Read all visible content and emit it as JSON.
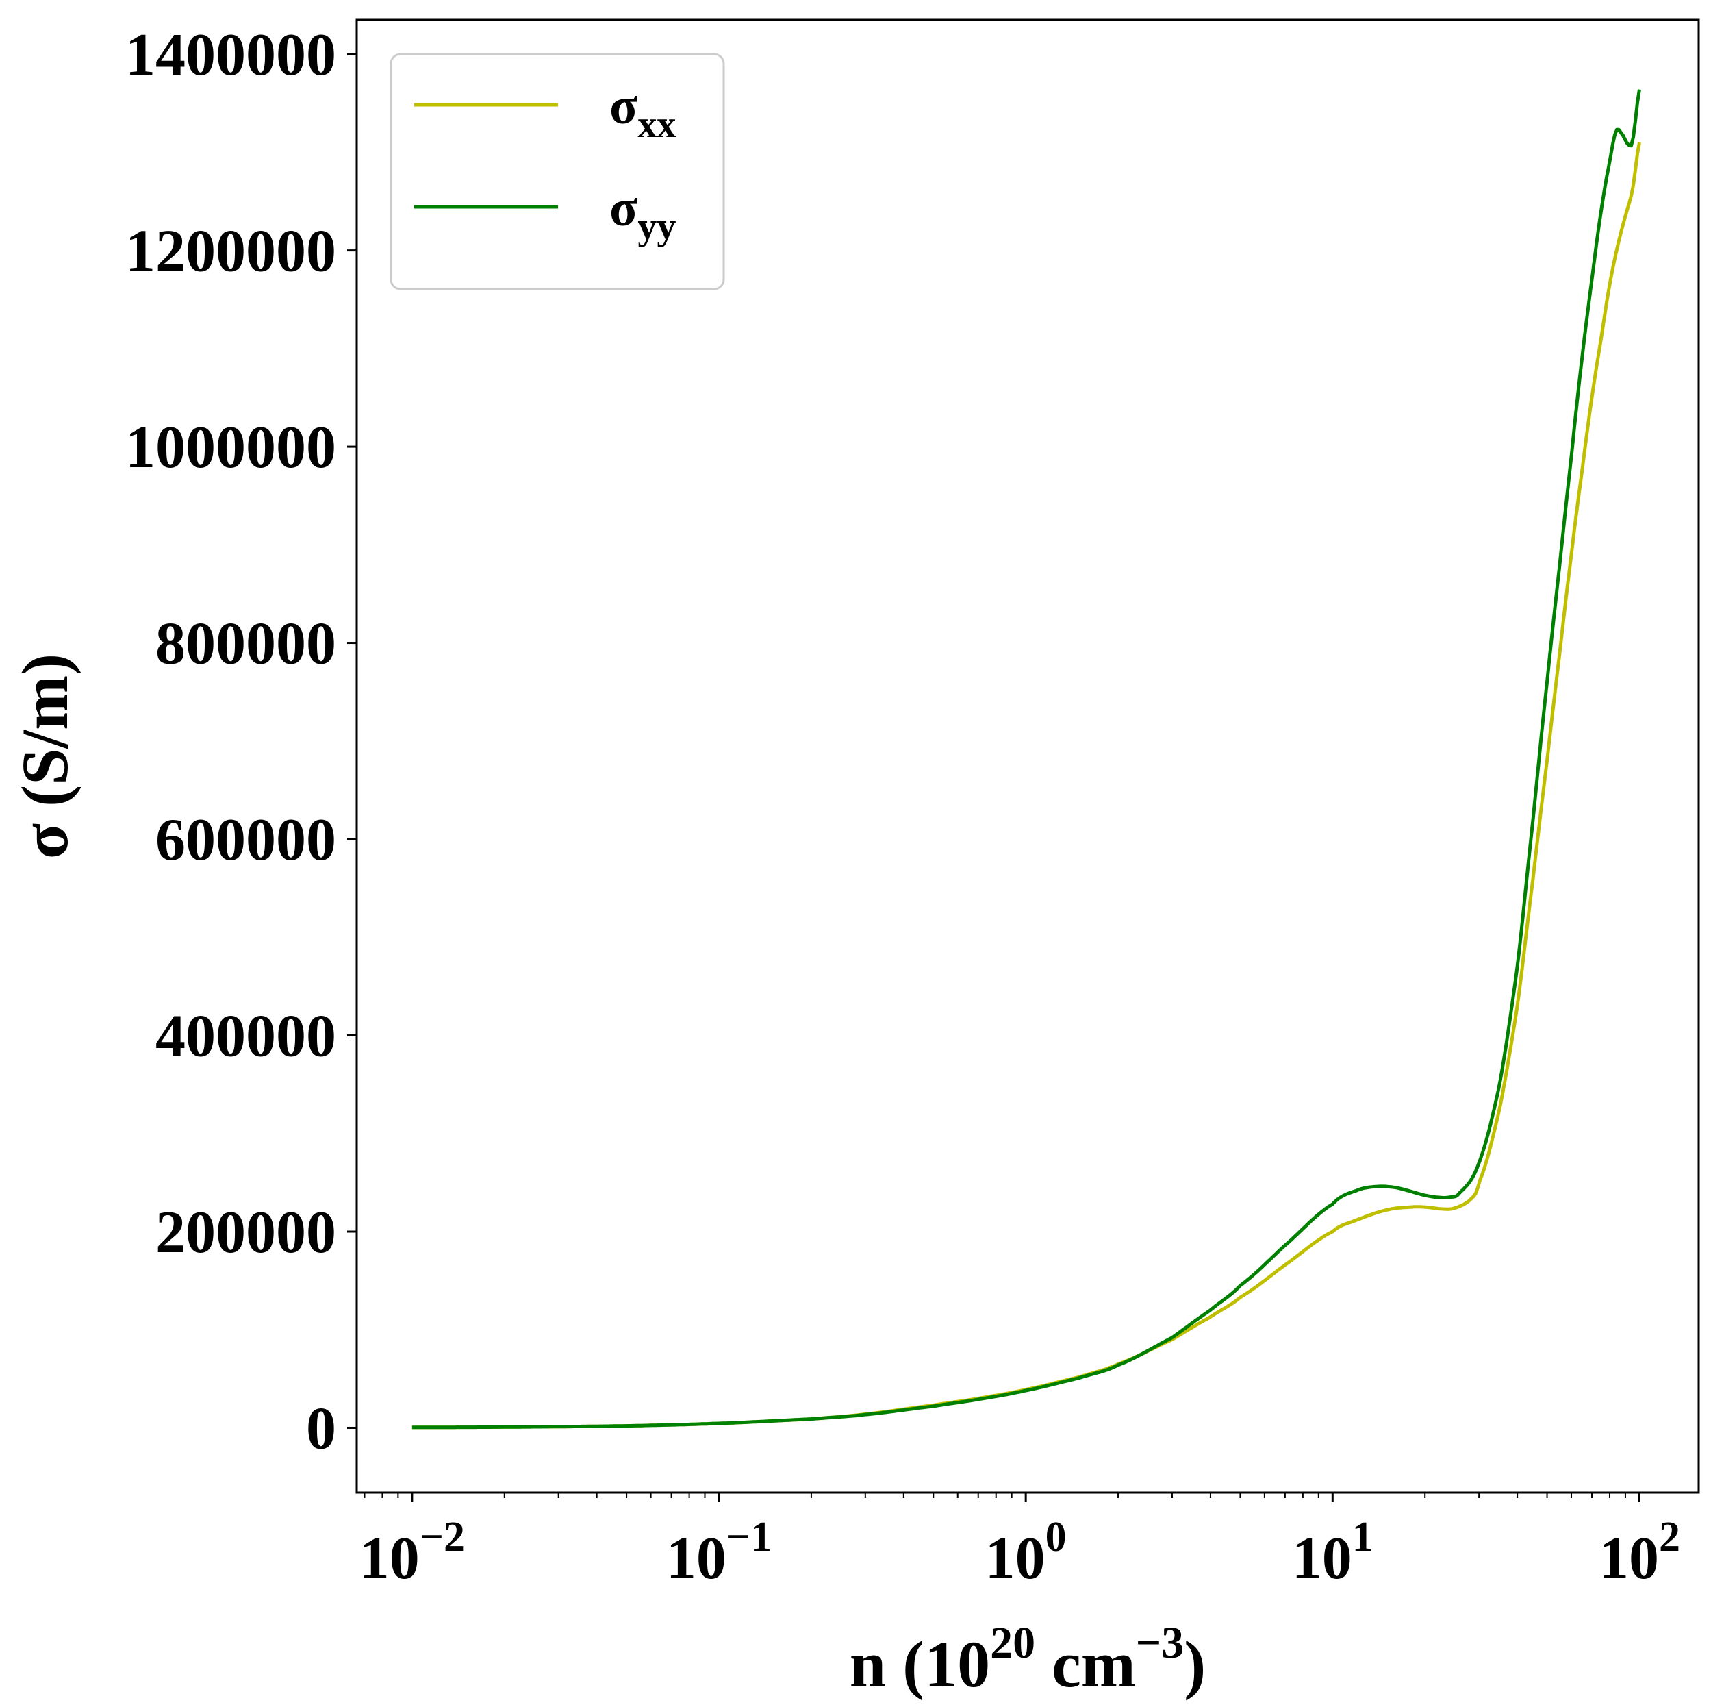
{
  "chart_data": {
    "type": "line",
    "x_scale": "log",
    "xlim": [
      0.0066,
      156
    ],
    "ylim": [
      -66000,
      1435000
    ],
    "grid": false,
    "legend_position": "top-left",
    "xlabel": {
      "base": "n (10",
      "exp1": "20",
      "mid": " cm",
      "exp2": "−3",
      "end": ")"
    },
    "ylabel": "σ (S/m)",
    "x_ticks": [
      {
        "value": 0.01,
        "base": "10",
        "exp": "−2"
      },
      {
        "value": 0.1,
        "base": "10",
        "exp": "−1"
      },
      {
        "value": 1,
        "base": "10",
        "exp": "0"
      },
      {
        "value": 10,
        "base": "10",
        "exp": "1"
      },
      {
        "value": 100,
        "base": "10",
        "exp": "2"
      }
    ],
    "y_ticks": [
      {
        "value": 0,
        "label": "0"
      },
      {
        "value": 200000,
        "label": "200000"
      },
      {
        "value": 400000,
        "label": "400000"
      },
      {
        "value": 600000,
        "label": "600000"
      },
      {
        "value": 800000,
        "label": "800000"
      },
      {
        "value": 1000000,
        "label": "1000000"
      },
      {
        "value": 1200000,
        "label": "1200000"
      },
      {
        "value": 1400000,
        "label": "1400000"
      }
    ],
    "series": [
      {
        "name": "σxx",
        "name_base": "σ",
        "name_sub": "xx",
        "color": "#bfbf00",
        "x": [
          0.01,
          0.02,
          0.05,
          0.1,
          0.2,
          0.3,
          0.5,
          0.7,
          1.0,
          1.5,
          2.0,
          3.0,
          4.0,
          5.0,
          7.0,
          10.0,
          12.0,
          15.0,
          18.0,
          20.0,
          23.0,
          25.0,
          28.0,
          30.0,
          35.0,
          40.0,
          45.0,
          50.0,
          55.0,
          60.0,
          65.0,
          70.0,
          75.0,
          80.0,
          85.0,
          90.0,
          95.0,
          100.0
        ],
        "y": [
          500,
          800,
          2000,
          4500,
          9000,
          14000,
          23000,
          30000,
          39000,
          52000,
          65000,
          90000,
          113000,
          133000,
          166000,
          200000,
          212000,
          222000,
          225000,
          225000,
          223000,
          224000,
          232000,
          250000,
          325000,
          430000,
          560000,
          680000,
          790000,
          890000,
          975000,
          1050000,
          1110000,
          1165000,
          1205000,
          1235000,
          1262000,
          1310000
        ]
      },
      {
        "name": "σyy",
        "name_base": "σ",
        "name_sub": "yy",
        "color": "#008000",
        "x": [
          0.01,
          0.02,
          0.05,
          0.1,
          0.2,
          0.3,
          0.5,
          0.7,
          1.0,
          1.5,
          2.0,
          3.0,
          4.0,
          5.0,
          7.0,
          10.0,
          12.0,
          14.0,
          16.0,
          18.0,
          20.0,
          22.0,
          24.0,
          26.0,
          30.0,
          35.0,
          40.0,
          45.0,
          50.0,
          55.0,
          60.0,
          65.0,
          70.0,
          75.0,
          80.0,
          84.0,
          88.0,
          92.0,
          95.0,
          100.0
        ],
        "y": [
          500,
          800,
          2000,
          4500,
          9000,
          13500,
          22000,
          29000,
          38000,
          51000,
          64000,
          92000,
          120000,
          145000,
          186000,
          228000,
          242000,
          246000,
          245000,
          241000,
          237000,
          235000,
          235000,
          240000,
          270000,
          350000,
          470000,
          620000,
          760000,
          880000,
          990000,
          1090000,
          1170000,
          1240000,
          1290000,
          1322000,
          1318000,
          1308000,
          1312000,
          1364000
        ]
      }
    ]
  }
}
